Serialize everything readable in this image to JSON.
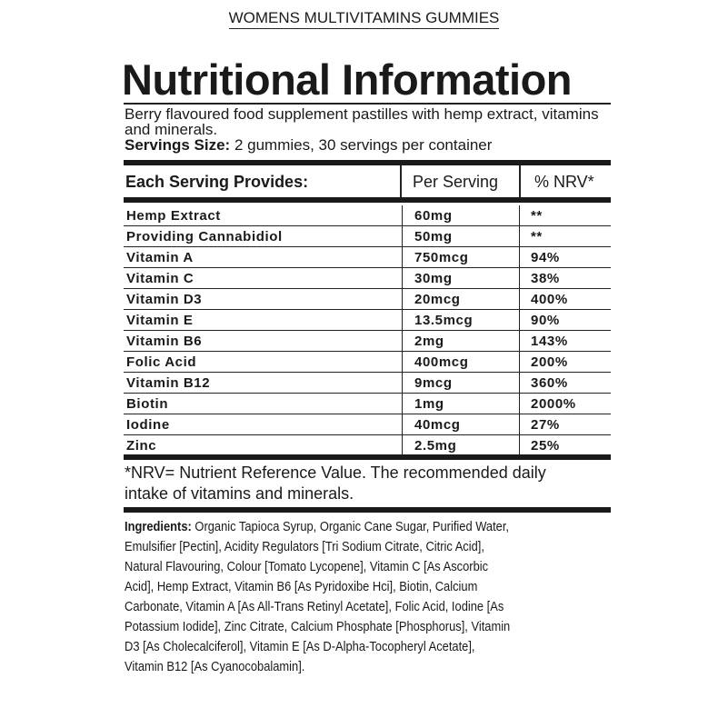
{
  "product_name": "WOMENS MULTIVITAMINS GUMMIES",
  "title": "Nutritional Information",
  "description": "Berry flavoured food supplement pastilles with hemp extract, vitamins and minerals.",
  "serving_label": "Servings Size:",
  "serving_value": " 2 gummies, 30 servings per container",
  "table": {
    "headers": [
      "Each Serving Provides:",
      "Per Serving",
      "% NRV*"
    ],
    "rows": [
      [
        "Hemp Extract",
        "60mg",
        "**"
      ],
      [
        "Providing Cannabidiol",
        "50mg",
        "**"
      ],
      [
        "Vitamin A",
        "750mcg",
        "94%"
      ],
      [
        "Vitamin C",
        "30mg",
        "38%"
      ],
      [
        "Vitamin D3",
        "20mcg",
        "400%"
      ],
      [
        "Vitamin E",
        "13.5mcg",
        "90%"
      ],
      [
        "Vitamin B6",
        "2mg",
        "143%"
      ],
      [
        "Folic Acid",
        "400mcg",
        "200%"
      ],
      [
        "Vitamin B12",
        "9mcg",
        "360%"
      ],
      [
        "Biotin",
        "1mg",
        "2000%"
      ],
      [
        "Iodine",
        "40mcg",
        "27%"
      ],
      [
        "Zinc",
        "2.5mg",
        "25%"
      ]
    ]
  },
  "footnote": [
    "*NRV= Nutrient Reference Value. The recommended daily",
    "intake of vitamins and minerals."
  ],
  "ingredients_label": "Ingredients:",
  "ingredients_lines": [
    " Organic Tapioca Syrup, Organic Cane Sugar, Purified Water,",
    "Emulsifier [Pectin], Acidity Regulators [Tri Sodium Citrate, Citric Acid],",
    "Natural Flavouring, Colour [Tomato Lycopene], Vitamin C [As Ascorbic",
    "Acid], Hemp Extract, Vitamin B6 [As Pyridoxibe Hci], Biotin, Calcium",
    "Carbonate, Vitamin A [As All-Trans Retinyl Acetate], Folic Acid, Iodine [As",
    "Potassium Iodide], Zinc Citrate, Calcium Phosphate [Phosphorus], Vitamin",
    "D3 [As Cholecalciferol], Vitamin E [As D-Alpha-Tocopheryl Acetate],",
    "Vitamin B12 [As Cyanocobalamin]."
  ]
}
